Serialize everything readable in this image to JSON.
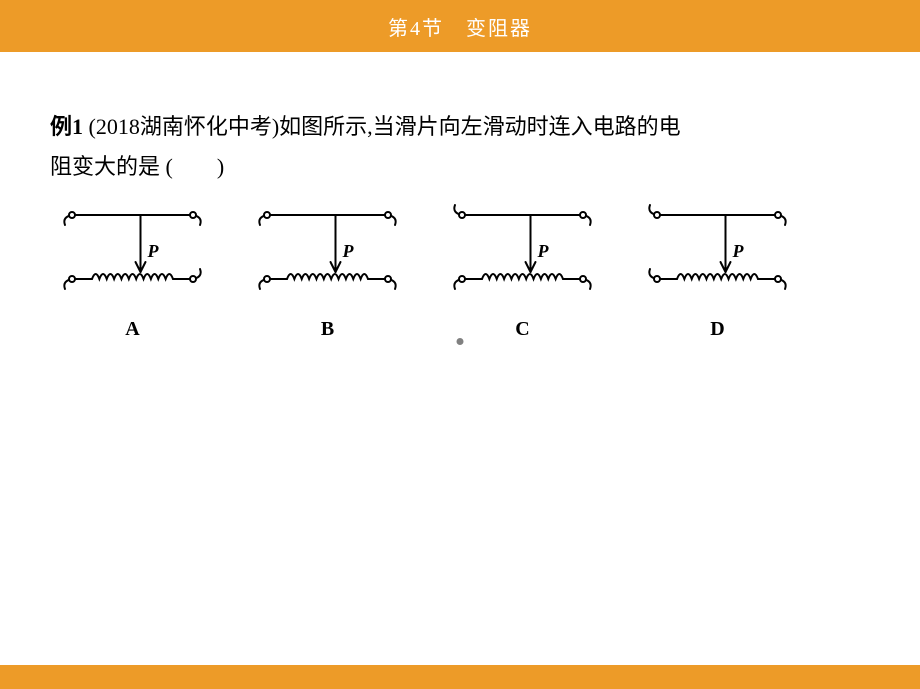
{
  "header": {
    "title": "第4节　变阻器"
  },
  "example": {
    "label": "例1",
    "source": "(2018湖南怀化中考)",
    "question_part1": "如图所示,当滑片向左滑动时连入电路的电",
    "question_part2": "阻变大的是",
    "paren": " (　　)"
  },
  "colors": {
    "header_bg": "#ed9b28",
    "diagram_stroke": "#000000",
    "text": "#000000",
    "bg": "#ffffff"
  },
  "diagrams": [
    {
      "label": "A",
      "top_left_hook": "left-down",
      "top_right_hook": "right-down",
      "bottom_left_hook": "left-down",
      "bottom_right_hook": "right-up"
    },
    {
      "label": "B",
      "top_left_hook": "left-down",
      "top_right_hook": "right-down",
      "bottom_left_hook": "left-down",
      "bottom_right_hook": "right-down"
    },
    {
      "label": "C",
      "top_left_hook": "left-up",
      "top_right_hook": "right-down",
      "bottom_left_hook": "left-down",
      "bottom_right_hook": "right-down"
    },
    {
      "label": "D",
      "top_left_hook": "left-up",
      "top_right_hook": "right-down",
      "bottom_left_hook": "left-up",
      "bottom_right_hook": "right-down"
    }
  ],
  "diagram_style": {
    "width": 165,
    "height": 115,
    "stroke_width": 2,
    "terminal_radius": 3,
    "coil_turns": 11,
    "coil_amp": 5,
    "label_font": "Times New Roman italic bold",
    "p_label": "P"
  }
}
